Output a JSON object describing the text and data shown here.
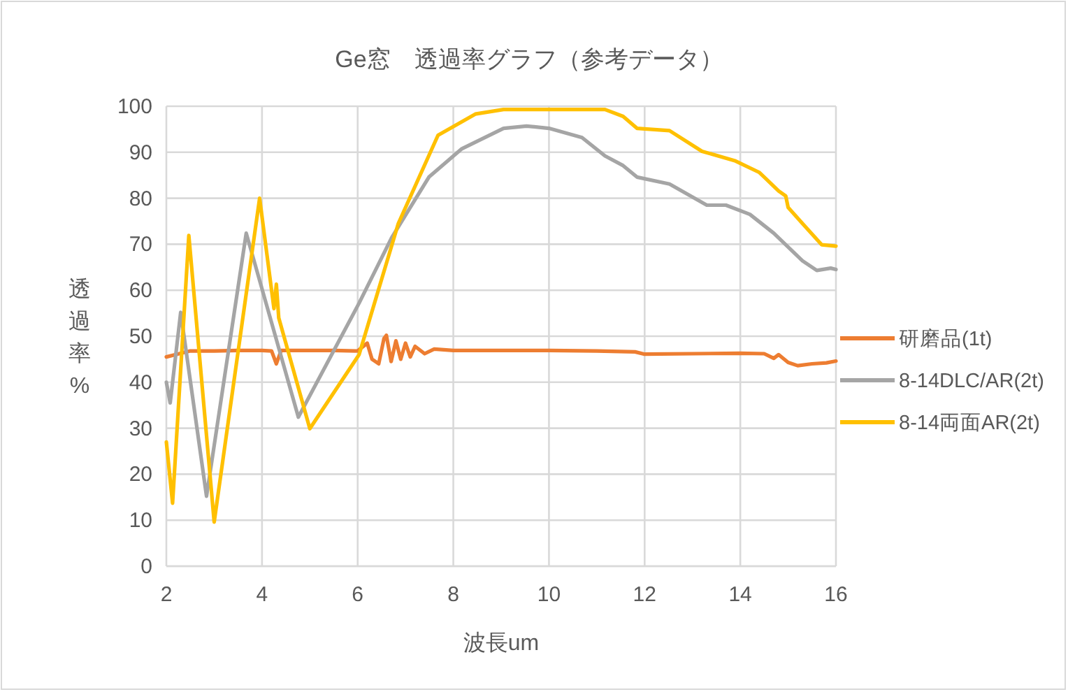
{
  "chart_data": {
    "type": "line",
    "title": "Ge窓　透過率グラフ（参考データ）",
    "xlabel": "波長um",
    "ylabel": "透過率%",
    "xlim": [
      2,
      16
    ],
    "ylim": [
      0,
      100
    ],
    "xticks": [
      2,
      4,
      6,
      8,
      10,
      12,
      14,
      16
    ],
    "yticks": [
      0,
      10,
      20,
      30,
      40,
      50,
      60,
      70,
      80,
      90,
      100
    ],
    "grid": true,
    "legend": "right",
    "marker": "none",
    "line_style": "solid",
    "series": [
      {
        "name": "研磨品(1t)",
        "color": "#ed7d31",
        "x": [
          2,
          2.5,
          3,
          3.5,
          4,
          4.2,
          4.3,
          4.4,
          5,
          5.5,
          6,
          6.2,
          6.3,
          6.44,
          6.55,
          6.6,
          6.7,
          6.8,
          6.9,
          7,
          7.1,
          7.2,
          7.4,
          7.6,
          8,
          9,
          10,
          11,
          11.8,
          12,
          13,
          14,
          14.5,
          14.7,
          14.8,
          15,
          15.2,
          15.5,
          15.8,
          16
        ],
        "values": [
          45.5,
          46.8,
          46.8,
          46.9,
          46.9,
          46.8,
          44,
          46.9,
          46.9,
          46.9,
          46.8,
          48.5,
          45,
          44,
          49.5,
          50.2,
          44.5,
          49,
          45,
          48.5,
          45.5,
          47.8,
          46.2,
          47.2,
          46.9,
          46.9,
          46.9,
          46.8,
          46.6,
          46.1,
          46.2,
          46.3,
          46.2,
          45.2,
          46,
          44.3,
          43.6,
          44,
          44.2,
          44.6
        ]
      },
      {
        "name": "8-14DLC/AR(2t)",
        "color": "#a5a5a5",
        "x": [
          2,
          2.08,
          2.3,
          2.84,
          3.67,
          4.76,
          6.03,
          6.71,
          7.49,
          8.17,
          9.05,
          9.53,
          10,
          10.69,
          11.17,
          11.55,
          11.84,
          12.52,
          13.3,
          13.7,
          14.2,
          14.7,
          15.3,
          15.6,
          15.89,
          16
        ],
        "values": [
          40,
          35.5,
          55.2,
          15.2,
          72.4,
          32.4,
          57.2,
          71.4,
          84.6,
          90.7,
          95.2,
          95.7,
          95.2,
          93.2,
          89.2,
          87.1,
          84.6,
          83.1,
          78.5,
          78.5,
          76.5,
          72.4,
          66.4,
          64.3,
          64.8,
          64.5
        ]
      },
      {
        "name": "8-14両面AR(2t)",
        "color": "#ffc000",
        "x": [
          2,
          2.13,
          2.47,
          3,
          3.95,
          4.25,
          4.3,
          4.35,
          5,
          6.03,
          6.85,
          7.68,
          8.46,
          9.05,
          10,
          11.17,
          11.55,
          11.84,
          12.52,
          13.2,
          13.9,
          14.4,
          14.8,
          14.95,
          15,
          15.3,
          15.7,
          16
        ],
        "values": [
          27,
          13.7,
          71.9,
          9.6,
          80,
          56,
          61.3,
          54,
          29.9,
          46,
          74.5,
          93.7,
          98.3,
          99.3,
          99.3,
          99.3,
          97.8,
          95.2,
          94.7,
          90.2,
          88.1,
          85.6,
          81.6,
          80.5,
          78,
          74.5,
          69.9,
          69.6
        ]
      }
    ]
  }
}
